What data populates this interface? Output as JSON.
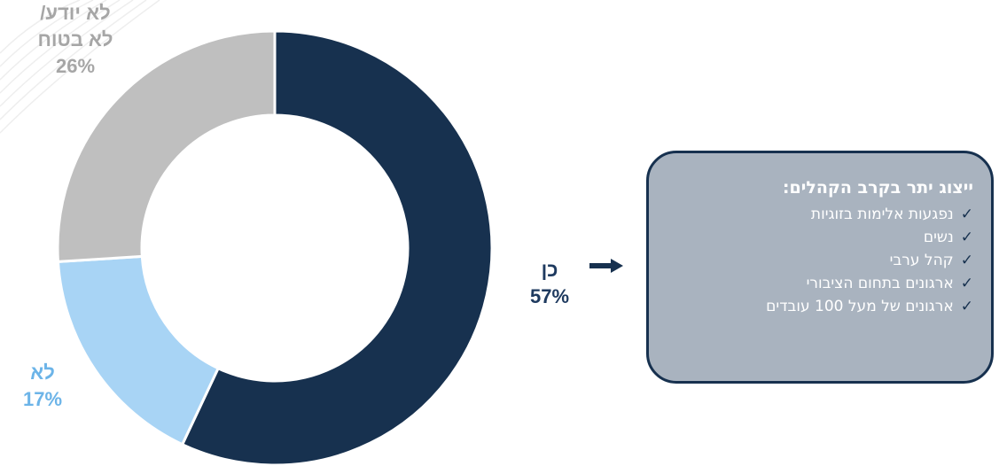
{
  "chart_data": {
    "type": "donut",
    "slices": [
      {
        "label": "כן",
        "value": 57,
        "display": "57%",
        "color": "#17314f"
      },
      {
        "label": "לא",
        "value": 17,
        "display": "17%",
        "color": "#a8d4f5"
      },
      {
        "label": "לא יודע/ לא בטוח",
        "value": 26,
        "display": "26%",
        "color": "#bfbfbf"
      }
    ]
  },
  "labels": {
    "yes_name": "כן",
    "yes_pct": "57%",
    "no_name": "לא",
    "no_pct": "17%",
    "unsure_line1": "לא יודע/",
    "unsure_line2": "לא בטוח",
    "unsure_pct": "26%"
  },
  "callout": {
    "title": "ייצוג יתר בקרב הקהלים:",
    "check_icon": "✓",
    "items": [
      "נפגעות אלימות בזוגיות",
      "נשים",
      "קהל ערבי",
      "ארגונים בתחום הציבורי",
      "ארגונים של מעל 100 עובדים"
    ]
  },
  "colors": {
    "border": "#17314f",
    "callout_fill": "#a9b3bf"
  }
}
